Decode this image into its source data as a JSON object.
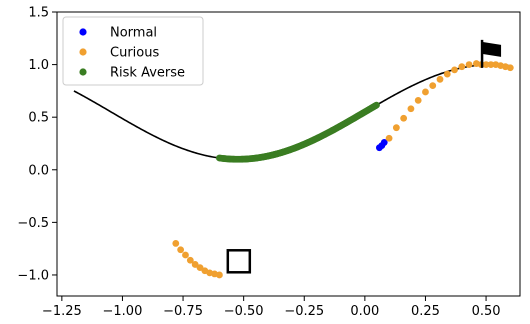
{
  "chart_data": {
    "type": "scatter",
    "title": "",
    "xlabel": "",
    "ylabel": "",
    "xlim": [
      -1.27,
      0.64
    ],
    "ylim": [
      -1.2,
      1.5
    ],
    "x_ticks": [
      -1.25,
      -1.0,
      -0.75,
      -0.5,
      -0.25,
      0.0,
      0.25,
      0.5
    ],
    "x_tick_labels": [
      "−1.25",
      "−1.00",
      "−0.75",
      "−0.50",
      "−0.25",
      "0.00",
      "0.25",
      "0.50"
    ],
    "y_ticks": [
      -1.0,
      -0.5,
      0.0,
      0.5,
      1.0,
      1.5
    ],
    "y_tick_labels": [
      "−1.0",
      "−0.5",
      "0.0",
      "0.5",
      "1.0",
      "1.5"
    ],
    "grid": false,
    "legend_position": "top-left",
    "curve": {
      "color": "#000000",
      "x_range": [
        -1.2,
        0.6
      ],
      "note": "y = 0.45*sin(3x) + 0.55"
    },
    "markers": {
      "start_box": {
        "x": -0.52,
        "y": -0.87
      },
      "goal_flag": {
        "x": 0.5,
        "y": 1.14
      }
    },
    "series": [
      {
        "name": "Normal",
        "color": "#0000ff",
        "x": [
          0.06,
          0.07,
          0.08
        ],
        "y": [
          0.21,
          0.23,
          0.26
        ]
      },
      {
        "name": "Curious",
        "color": "#f0a030",
        "x": [
          -0.78,
          -0.76,
          -0.74,
          -0.72,
          -0.7,
          -0.68,
          -0.66,
          -0.64,
          -0.62,
          -0.6,
          0.1,
          0.13,
          0.16,
          0.19,
          0.22,
          0.25,
          0.28,
          0.31,
          0.34,
          0.37,
          0.4,
          0.43,
          0.46,
          0.48,
          0.5,
          0.52,
          0.54,
          0.56,
          0.58,
          0.6
        ],
        "y": [
          -0.7,
          -0.76,
          -0.81,
          -0.86,
          -0.9,
          -0.93,
          -0.96,
          -0.98,
          -0.99,
          -1.0,
          0.3,
          0.4,
          0.49,
          0.58,
          0.66,
          0.74,
          0.8,
          0.86,
          0.91,
          0.95,
          0.98,
          1.0,
          1.01,
          1.0,
          1.0,
          1.0,
          1.0,
          0.99,
          0.98,
          0.97
        ]
      },
      {
        "name": "Risk Averse",
        "color": "#3a7d22",
        "x_range": [
          -0.6,
          0.05
        ],
        "step": 0.004
      }
    ]
  }
}
